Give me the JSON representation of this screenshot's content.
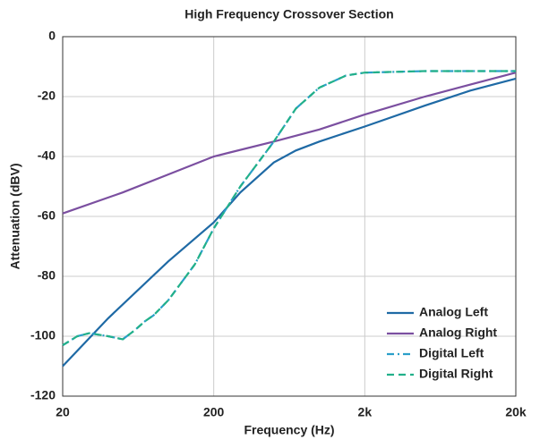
{
  "chart_data": {
    "type": "line",
    "title": "High Frequency Crossover Section",
    "x_label": "Frequency (Hz)",
    "y_label": "Attenuation (dBV)",
    "log_x": true,
    "grid": true,
    "legend": "lower right",
    "xlim": [
      20,
      20000
    ],
    "xticks": [
      20,
      200,
      {
        "value": 2000,
        "label": "2k"
      },
      {
        "value": 20000,
        "label": "20k"
      }
    ],
    "ylim": [
      -120,
      0
    ],
    "yticks": [
      -120,
      -100,
      -80,
      -60,
      -40,
      -20,
      0
    ],
    "series": [
      {
        "name": "Analog Left",
        "color": "#1f6aa5",
        "dash": "solid",
        "x": [
          20,
          40,
          100,
          200,
          300,
          500,
          700,
          1000,
          2000,
          5000,
          10000,
          20000
        ],
        "values": [
          -110,
          -94,
          -75,
          -62,
          -52,
          -42,
          -38,
          -35,
          -30,
          -23,
          -18,
          -14
        ]
      },
      {
        "name": "Analog Right",
        "color": "#7b4fa0",
        "dash": "solid",
        "x": [
          20,
          50,
          100,
          200,
          500,
          1000,
          2000,
          5000,
          10000,
          20000
        ],
        "values": [
          -59,
          -52,
          -46,
          -40,
          -35,
          -31,
          -26,
          -20,
          -16,
          -12
        ]
      },
      {
        "name": "Digital Left",
        "color": "#2a9fc9",
        "dash": "dashdot",
        "x": [
          20,
          25,
          30,
          40,
          50,
          60,
          70,
          80,
          100,
          150,
          200,
          300,
          500,
          700,
          1000,
          1500,
          2000,
          5000,
          20000
        ],
        "values": [
          -103,
          -100,
          -99,
          -100,
          -101,
          -98,
          -95,
          -93,
          -88,
          -76,
          -64,
          -50,
          -35,
          -24,
          -17,
          -13,
          -12,
          -11.5,
          -11.5
        ]
      },
      {
        "name": "Digital Right",
        "color": "#22b08a",
        "dash": "dashed",
        "x": [
          20,
          25,
          30,
          40,
          50,
          60,
          70,
          80,
          100,
          150,
          200,
          300,
          500,
          700,
          1000,
          1500,
          2000,
          5000,
          20000
        ],
        "values": [
          -103,
          -100,
          -99,
          -100,
          -101,
          -98,
          -95,
          -93,
          -88,
          -76,
          -64,
          -50,
          -35,
          -24,
          -17,
          -13,
          -12,
          -11.5,
          -11.5
        ]
      }
    ]
  }
}
